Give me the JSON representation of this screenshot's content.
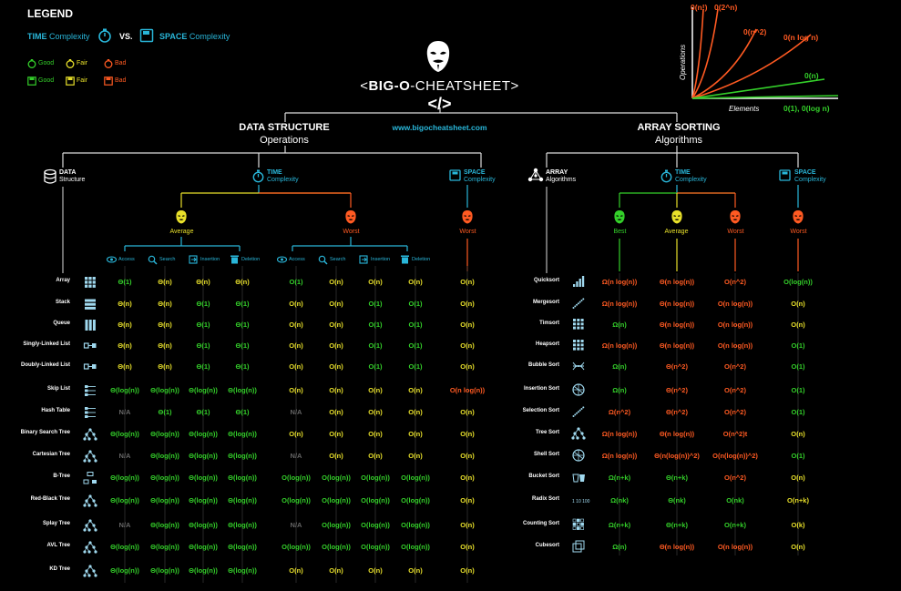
{
  "legend": {
    "title": "LEGEND",
    "time_label": "TIME",
    "complexity1": "Complexity",
    "vs": "VS.",
    "space_label": "SPACE",
    "complexity2": "Complexity",
    "good": "Good",
    "fair": "Fair",
    "bad": "Bad"
  },
  "header": {
    "lt": "<",
    "bigo": "BIG-O",
    "dash": "-",
    "cheatsheet": "CHEATSHEET",
    "gt": ">",
    "code_glyph": "</>",
    "url": "www.bigocheatsheet.com"
  },
  "graph": {
    "ylabel": "Operations",
    "xlabel": "Elements",
    "labels": [
      "0(n!)",
      "0(2^n)",
      "0(n^2)",
      "0(n log n)",
      "0(n)",
      "0(1), 0(log n)"
    ]
  },
  "ds": {
    "title": "DATA STRUCTURE",
    "subtitle": "Operations",
    "col_ds": "DATA",
    "col_ds2": "Structure",
    "col_time": "TIME",
    "col_time2": "Complexity",
    "col_space": "SPACE",
    "col_space2": "Complexity",
    "average": "Average",
    "worst": "Worst",
    "space_worst": "Worst",
    "ops": [
      "Access",
      "Search",
      "Insertion",
      "Deletion"
    ],
    "rows": [
      {
        "name": "Array",
        "icon": "array-icon",
        "avg": [
          "Θ(1)",
          "Θ(n)",
          "Θ(n)",
          "Θ(n)"
        ],
        "worst": [
          "O(1)",
          "O(n)",
          "O(n)",
          "O(n)"
        ],
        "space": "O(n)"
      },
      {
        "name": "Stack",
        "icon": "stack-icon",
        "avg": [
          "Θ(n)",
          "Θ(n)",
          "Θ(1)",
          "Θ(1)"
        ],
        "worst": [
          "O(n)",
          "O(n)",
          "O(1)",
          "O(1)"
        ],
        "space": "O(n)"
      },
      {
        "name": "Queue",
        "icon": "queue-icon",
        "avg": [
          "Θ(n)",
          "Θ(n)",
          "Θ(1)",
          "Θ(1)"
        ],
        "worst": [
          "O(n)",
          "O(n)",
          "O(1)",
          "O(1)"
        ],
        "space": "O(n)"
      },
      {
        "name": "Singly-Linked List",
        "icon": "singly-linked-list-icon",
        "avg": [
          "Θ(n)",
          "Θ(n)",
          "Θ(1)",
          "Θ(1)"
        ],
        "worst": [
          "O(n)",
          "O(n)",
          "O(1)",
          "O(1)"
        ],
        "space": "O(n)"
      },
      {
        "name": "Doubly-Linked List",
        "icon": "doubly-linked-list-icon",
        "avg": [
          "Θ(n)",
          "Θ(n)",
          "Θ(1)",
          "Θ(1)"
        ],
        "worst": [
          "O(n)",
          "O(n)",
          "O(1)",
          "O(1)"
        ],
        "space": "O(n)"
      },
      {
        "name": "Skip List",
        "icon": "skip-list-icon",
        "avg": [
          "Θ(log(n))",
          "Θ(log(n))",
          "Θ(log(n))",
          "Θ(log(n))"
        ],
        "worst": [
          "O(n)",
          "O(n)",
          "O(n)",
          "O(n)"
        ],
        "space": "O(n log(n))"
      },
      {
        "name": "Hash Table",
        "icon": "hash-table-icon",
        "avg": [
          "N/A",
          "Θ(1)",
          "Θ(1)",
          "Θ(1)"
        ],
        "worst": [
          "N/A",
          "O(n)",
          "O(n)",
          "O(n)"
        ],
        "space": "O(n)"
      },
      {
        "name": "Binary Search Tree",
        "icon": "binary-search-tree-icon",
        "avg": [
          "Θ(log(n))",
          "Θ(log(n))",
          "Θ(log(n))",
          "Θ(log(n))"
        ],
        "worst": [
          "O(n)",
          "O(n)",
          "O(n)",
          "O(n)"
        ],
        "space": "O(n)"
      },
      {
        "name": "Cartesian Tree",
        "icon": "cartesian-tree-icon",
        "avg": [
          "N/A",
          "Θ(log(n))",
          "Θ(log(n))",
          "Θ(log(n))"
        ],
        "worst": [
          "N/A",
          "O(n)",
          "O(n)",
          "O(n)"
        ],
        "space": "O(n)"
      },
      {
        "name": "B-Tree",
        "icon": "b-tree-icon",
        "avg": [
          "Θ(log(n))",
          "Θ(log(n))",
          "Θ(log(n))",
          "Θ(log(n))"
        ],
        "worst": [
          "O(log(n))",
          "O(log(n))",
          "O(log(n))",
          "O(log(n))"
        ],
        "space": "O(n)"
      },
      {
        "name": "Red-Black Tree",
        "icon": "red-black-tree-icon",
        "avg": [
          "Θ(log(n))",
          "Θ(log(n))",
          "Θ(log(n))",
          "Θ(log(n))"
        ],
        "worst": [
          "O(log(n))",
          "O(log(n))",
          "O(log(n))",
          "O(log(n))"
        ],
        "space": "O(n)"
      },
      {
        "name": "Splay Tree",
        "icon": "splay-tree-icon",
        "avg": [
          "N/A",
          "Θ(log(n))",
          "Θ(log(n))",
          "Θ(log(n))"
        ],
        "worst": [
          "N/A",
          "O(log(n))",
          "O(log(n))",
          "O(log(n))"
        ],
        "space": "O(n)"
      },
      {
        "name": "AVL Tree",
        "icon": "avl-tree-icon",
        "avg": [
          "Θ(log(n))",
          "Θ(log(n))",
          "Θ(log(n))",
          "Θ(log(n))"
        ],
        "worst": [
          "O(log(n))",
          "O(log(n))",
          "O(log(n))",
          "O(log(n))"
        ],
        "space": "O(n)"
      },
      {
        "name": "KD Tree",
        "icon": "kd-tree-icon",
        "avg": [
          "Θ(log(n))",
          "Θ(log(n))",
          "Θ(log(n))",
          "Θ(log(n))"
        ],
        "worst": [
          "O(n)",
          "O(n)",
          "O(n)",
          "O(n)"
        ],
        "space": "O(n)"
      }
    ]
  },
  "as": {
    "title": "ARRAY SORTING",
    "subtitle": "Algorithms",
    "col_alg": "ARRAY",
    "col_alg2": "Algorithms",
    "col_time": "TIME",
    "col_time2": "Complexity",
    "col_space": "SPACE",
    "col_space2": "Complexity",
    "best": "Best",
    "average": "Average",
    "worst": "Worst",
    "space_worst": "Worst",
    "rows": [
      {
        "name": "Quicksort",
        "icon": "quicksort-icon",
        "t": [
          "Ω(n log(n))",
          "Θ(n log(n))",
          "O(n^2)"
        ],
        "space": "O(log(n))"
      },
      {
        "name": "Mergesort",
        "icon": "mergesort-icon",
        "t": [
          "Ω(n log(n))",
          "Θ(n log(n))",
          "O(n log(n))"
        ],
        "space": "O(n)"
      },
      {
        "name": "Timsort",
        "icon": "timsort-icon",
        "t": [
          "Ω(n)",
          "Θ(n log(n))",
          "O(n log(n))"
        ],
        "space": "O(n)"
      },
      {
        "name": "Heapsort",
        "icon": "heapsort-icon",
        "t": [
          "Ω(n log(n))",
          "Θ(n log(n))",
          "O(n log(n))"
        ],
        "space": "O(1)"
      },
      {
        "name": "Bubble Sort",
        "icon": "bubble-sort-icon",
        "t": [
          "Ω(n)",
          "Θ(n^2)",
          "O(n^2)"
        ],
        "space": "O(1)"
      },
      {
        "name": "Insertion Sort",
        "icon": "insertion-sort-icon",
        "t": [
          "Ω(n)",
          "Θ(n^2)",
          "O(n^2)"
        ],
        "space": "O(1)"
      },
      {
        "name": "Selection Sort",
        "icon": "selection-sort-icon",
        "t": [
          "Ω(n^2)",
          "Θ(n^2)",
          "O(n^2)"
        ],
        "space": "O(1)"
      },
      {
        "name": "Tree Sort",
        "icon": "tree-sort-icon",
        "t": [
          "Ω(n log(n))",
          "Θ(n log(n))",
          "O(n^2)t"
        ],
        "space": "O(n)"
      },
      {
        "name": "Shell Sort",
        "icon": "shell-sort-icon",
        "t": [
          "Ω(n log(n))",
          "Θ(n(log(n))^2)",
          "O(n(log(n))^2)"
        ],
        "space": "O(1)"
      },
      {
        "name": "Bucket Sort",
        "icon": "bucket-sort-icon",
        "t": [
          "Ω(n+k)",
          "Θ(n+k)",
          "O(n^2)"
        ],
        "space": "O(n)"
      },
      {
        "name": "Radix Sort",
        "icon": "radix-sort-icon",
        "t": [
          "Ω(nk)",
          "Θ(nk)",
          "O(nk)"
        ],
        "space": "O(n+k)"
      },
      {
        "name": "Counting Sort",
        "icon": "counting-sort-icon",
        "t": [
          "Ω(n+k)",
          "Θ(n+k)",
          "O(n+k)"
        ],
        "space": "O(k)"
      },
      {
        "name": "Cubesort",
        "icon": "cubesort-icon",
        "t": [
          "Ω(n)",
          "Θ(n log(n))",
          "O(n log(n))"
        ],
        "space": "O(n)"
      }
    ]
  },
  "colors": {
    "good": "#34d02a",
    "fair": "#e8e02a",
    "bad": "#ff5a22",
    "accent": "#29b6d9"
  }
}
